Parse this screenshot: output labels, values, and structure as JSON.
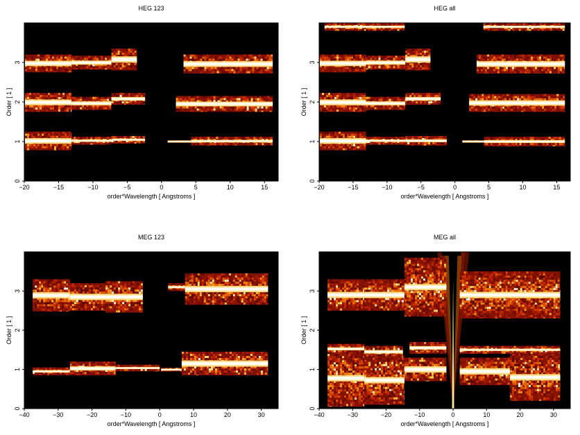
{
  "chart_data": [
    {
      "type": "heatmap",
      "title": "HEG 123",
      "xlabel": "order*Wavelength [ Angstroms ]",
      "ylabel": "Order [ 1 ]",
      "xlim": [
        -20,
        17
      ],
      "ylim": [
        0,
        4
      ],
      "xticks": [
        "−20",
        "−15",
        "−10",
        "−5",
        "0",
        "5",
        "10",
        "15"
      ],
      "xtick_values": [
        -20,
        -15,
        -10,
        -5,
        0,
        5,
        10,
        15
      ],
      "yticks": [
        "0",
        "1",
        "2",
        "3"
      ],
      "ytick_values": [
        0,
        1,
        2,
        3
      ],
      "background": "#000000",
      "bands": [
        {
          "order": 1,
          "segments": [
            [
              -19.9,
              -13.1,
              0.78,
              1.25
            ],
            [
              -13.1,
              -7.3,
              0.92,
              1.12
            ],
            [
              -7.3,
              -2.4,
              0.95,
              1.14
            ],
            [
              0.9,
              4.3,
              0.97,
              1.03
            ],
            [
              4.3,
              16.2,
              0.9,
              1.12
            ]
          ]
        },
        {
          "order": 2,
          "segments": [
            [
              -19.9,
              -13.1,
              1.75,
              2.23
            ],
            [
              -13.1,
              -7.3,
              1.8,
              2.13
            ],
            [
              -7.3,
              -2.4,
              1.93,
              2.23
            ],
            [
              2.1,
              16.2,
              1.75,
              2.15
            ]
          ]
        },
        {
          "order": 3,
          "segments": [
            [
              -19.9,
              -13.1,
              2.75,
              3.2
            ],
            [
              -13.1,
              -7.3,
              2.82,
              3.17
            ],
            [
              -7.3,
              -3.6,
              2.8,
              3.35
            ],
            [
              3.2,
              16.2,
              2.72,
              3.2
            ]
          ]
        }
      ]
    },
    {
      "type": "heatmap",
      "title": "HEG all",
      "xlabel": "order*Wavelength [ Angstroms ]",
      "ylabel": "Order [ 1 ]",
      "xlim": [
        -20,
        17
      ],
      "ylim": [
        0,
        4
      ],
      "xticks": [
        "−20",
        "−15",
        "−10",
        "−5",
        "0",
        "5",
        "10",
        "15"
      ],
      "xtick_values": [
        -20,
        -15,
        -10,
        -5,
        0,
        5,
        10,
        15
      ],
      "yticks": [
        "0",
        "1",
        "2",
        "3"
      ],
      "ytick_values": [
        0,
        1,
        2,
        3
      ],
      "background": "#000000",
      "bands": [
        {
          "order": 1,
          "segments": [
            [
              -19.9,
              -13.1,
              0.78,
              1.25
            ],
            [
              -13.1,
              -7.3,
              0.92,
              1.12
            ],
            [
              -7.3,
              -1.2,
              0.9,
              1.14
            ],
            [
              1.1,
              4.3,
              0.97,
              1.03
            ],
            [
              4.3,
              16.2,
              0.88,
              1.12
            ]
          ]
        },
        {
          "order": 2,
          "segments": [
            [
              -19.9,
              -13.1,
              1.75,
              2.23
            ],
            [
              -13.1,
              -7.3,
              1.8,
              2.13
            ],
            [
              -7.3,
              -2.1,
              1.93,
              2.23
            ],
            [
              2.1,
              16.2,
              1.75,
              2.2
            ]
          ]
        },
        {
          "order": 3,
          "segments": [
            [
              -19.9,
              -13.1,
              2.75,
              3.2
            ],
            [
              -13.1,
              -7.3,
              2.82,
              3.17
            ],
            [
              -7.3,
              -3.6,
              2.8,
              3.35
            ],
            [
              3.2,
              16.2,
              2.72,
              3.2
            ]
          ]
        },
        {
          "order": 4,
          "segments": [
            [
              -19.2,
              -13.1,
              3.8,
              4.0
            ],
            [
              -13.1,
              -7.4,
              3.8,
              4.0
            ],
            [
              4.2,
              16.2,
              3.8,
              4.0
            ]
          ]
        }
      ]
    },
    {
      "type": "heatmap",
      "title": "MEG 123",
      "xlabel": "order*Wavelength [ Angstroms ]",
      "ylabel": "Order [ 1 ]",
      "xlim": [
        -40,
        35
      ],
      "ylim": [
        0,
        4
      ],
      "xticks": [
        "−40",
        "−30",
        "−20",
        "−10",
        "0",
        "10",
        "20",
        "30"
      ],
      "xtick_values": [
        -40,
        -30,
        -20,
        -10,
        0,
        10,
        20,
        30
      ],
      "yticks": [
        "0",
        "1",
        "2",
        "3"
      ],
      "ytick_values": [
        0,
        1,
        2,
        3
      ],
      "background": "#000000",
      "bands": [
        {
          "order": 1,
          "segments": [
            [
              -37.5,
              -26.5,
              0.85,
              1.05
            ],
            [
              -26.5,
              -13,
              0.85,
              1.2
            ],
            [
              -13,
              0,
              0.95,
              1.12
            ],
            [
              0.4,
              6.5,
              0.95,
              1.04
            ],
            [
              6.5,
              32,
              0.85,
              1.45
            ]
          ]
        },
        {
          "order": 3,
          "segments": [
            [
              -37.5,
              -26.5,
              2.48,
              3.3
            ],
            [
              -26.5,
              -16,
              2.5,
              3.2
            ],
            [
              -16,
              -5,
              2.45,
              3.25
            ],
            [
              2.5,
              7.5,
              3.0,
              3.2
            ],
            [
              7.5,
              32,
              2.65,
              3.45
            ]
          ]
        }
      ]
    },
    {
      "type": "heatmap",
      "title": "MEG all",
      "xlabel": "order*Wavelength [ Angstroms ]",
      "ylabel": "Order [ 1 ]",
      "xlim": [
        -40,
        35
      ],
      "ylim": [
        0,
        4
      ],
      "xticks": [
        "−40",
        "−30",
        "−20",
        "−10",
        "0",
        "10",
        "20",
        "30"
      ],
      "xtick_values": [
        -40,
        -30,
        -20,
        -10,
        0,
        10,
        20,
        30
      ],
      "yticks": [
        "0",
        "1",
        "2",
        "3"
      ],
      "ytick_values": [
        0,
        1,
        2,
        3
      ],
      "background": "#000000",
      "bands": [
        {
          "order": 1,
          "segments": [
            [
              -37.5,
              -26.5,
              0.05,
              1.5
            ],
            [
              -26.5,
              -14.5,
              0.1,
              1.35
            ],
            [
              -14.5,
              -2,
              0.7,
              1.3
            ],
            [
              2,
              17,
              0.6,
              1.3
            ],
            [
              17,
              32,
              0.2,
              1.4
            ]
          ]
        },
        {
          "order": 2,
          "segments": [
            [
              -37.5,
              -26.5,
              1.4,
              1.65
            ],
            [
              -26.5,
              -15,
              1.3,
              1.6
            ],
            [
              -13,
              -2,
              1.4,
              1.7
            ],
            [
              2,
              32,
              1.4,
              1.6
            ]
          ]
        },
        {
          "order": 3,
          "segments": [
            [
              -37.5,
              -26.5,
              2.5,
              3.3
            ],
            [
              -26.5,
              -14.5,
              2.5,
              3.3
            ],
            [
              -14.5,
              -2,
              2.35,
              3.85
            ],
            [
              2,
              32,
              2.3,
              3.5
            ]
          ]
        }
      ],
      "zero_order_fan": true
    }
  ]
}
